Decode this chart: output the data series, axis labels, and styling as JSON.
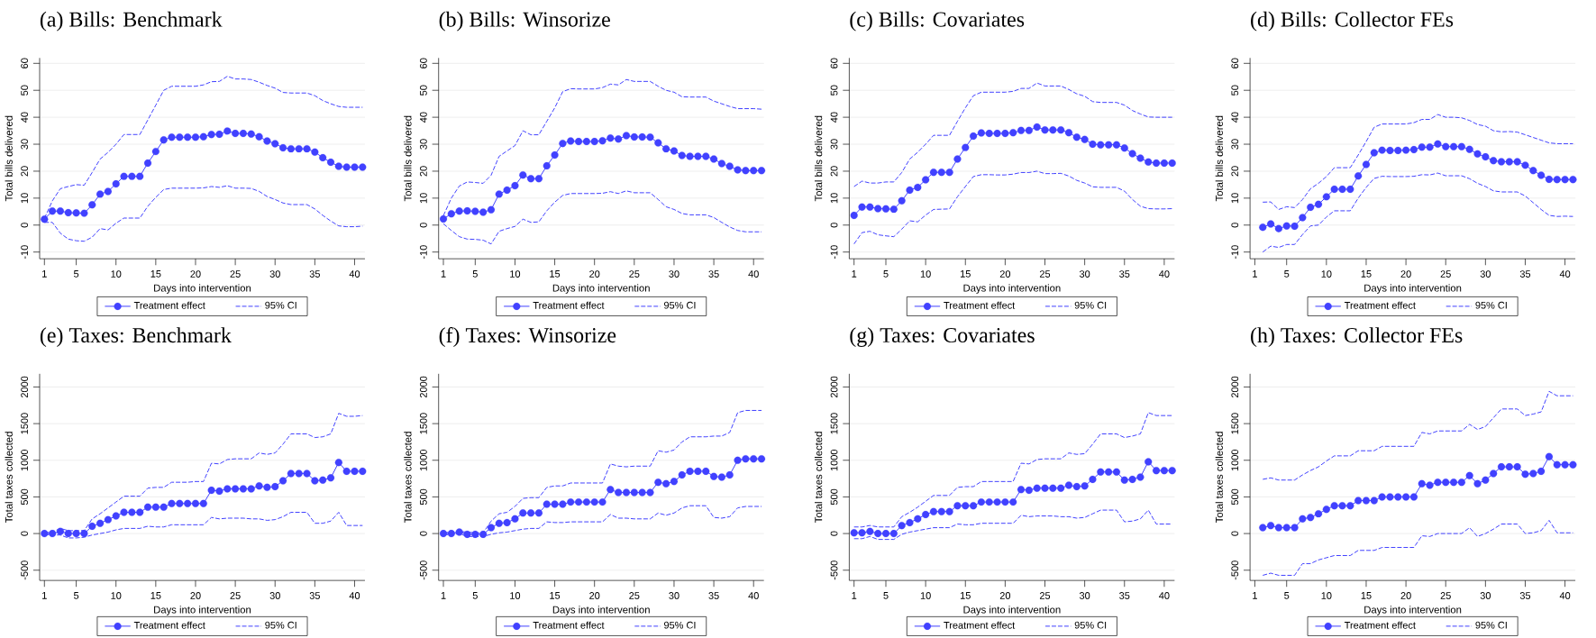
{
  "chart_data": [
    {
      "type": "line",
      "title": "(a) Bills: Benchmark",
      "xlabel": "Days into intervention",
      "ylabel": "Total bills delivered",
      "grid": "y",
      "legend": "bottom",
      "xlim": [
        0.4,
        41.3
      ],
      "ylim": [
        -12.5,
        62
      ],
      "xticks": [
        1,
        5,
        10,
        15,
        20,
        25,
        30,
        35,
        40
      ],
      "yticks": [
        -10,
        0,
        10,
        20,
        30,
        40,
        50,
        60
      ],
      "x": [
        1,
        2,
        3,
        4,
        5,
        6,
        7,
        8,
        9,
        10,
        11,
        12,
        13,
        14,
        15,
        16,
        17,
        18,
        19,
        20,
        21,
        22,
        23,
        24,
        25,
        26,
        27,
        28,
        29,
        30,
        31,
        32,
        33,
        34,
        35,
        36,
        37,
        38,
        39,
        40,
        41
      ],
      "series": [
        {
          "name": "Treatment effect",
          "color": "#4141ff",
          "marker": "circle",
          "line_style": "solid",
          "values": [
            2.2,
            5.2,
            5.2,
            4.6,
            4.5,
            4.4,
            7.5,
            11.5,
            12.5,
            15.3,
            18.1,
            18.1,
            18.1,
            23,
            27.3,
            31.6,
            32.6,
            32.6,
            32.6,
            32.6,
            32.8,
            33.6,
            33.7,
            34.9,
            34,
            34,
            33.8,
            32.8,
            31.2,
            30.2,
            28.7,
            28.3,
            28.3,
            28.3,
            27.1,
            25,
            23.3,
            21.8,
            21.5,
            21.5,
            21.5
          ]
        },
        {
          "name": "95% CI",
          "color": "#4141ff",
          "marker": "none",
          "line_style": "dashed",
          "values": [
            2.5,
            9,
            13.5,
            14.3,
            15,
            14.8,
            19.5,
            24.5,
            27,
            30,
            33.6,
            33.6,
            33.6,
            39,
            44.5,
            50,
            51.5,
            51.5,
            51.5,
            51.5,
            52,
            53.2,
            53.3,
            55.2,
            54.2,
            54.2,
            54,
            53,
            51.8,
            50.8,
            49.2,
            49,
            49,
            49,
            48,
            46.2,
            45,
            44,
            43.7,
            43.7,
            43.7
          ]
        },
        {
          "color": "#4141ff",
          "marker": "none",
          "line_style": "dashed",
          "values": [
            1,
            1,
            -3,
            -5.2,
            -5.8,
            -6,
            -4.5,
            -1.3,
            -1.8,
            0.7,
            2.6,
            2.6,
            2.6,
            7,
            10.3,
            13.2,
            13.7,
            13.7,
            13.7,
            13.7,
            13.8,
            14.3,
            14,
            14.6,
            13.7,
            13.7,
            13.6,
            12.5,
            10.6,
            9.5,
            8.2,
            7.6,
            7.6,
            7.6,
            6,
            3.6,
            1.5,
            -0.3,
            -0.6,
            -0.6,
            -0.4
          ]
        }
      ]
    },
    {
      "type": "line",
      "title": "(b) Bills: Winsorize",
      "xlabel": "Days into intervention",
      "ylabel": "Total bills delivered",
      "grid": "y",
      "legend": "bottom",
      "xlim": [
        0.4,
        41.3
      ],
      "ylim": [
        -12.5,
        62
      ],
      "xticks": [
        1,
        5,
        10,
        15,
        20,
        25,
        30,
        35,
        40
      ],
      "yticks": [
        -10,
        0,
        10,
        20,
        30,
        40,
        50,
        60
      ],
      "x": [
        1,
        2,
        3,
        4,
        5,
        6,
        7,
        8,
        9,
        10,
        11,
        12,
        13,
        14,
        15,
        16,
        17,
        18,
        19,
        20,
        21,
        22,
        23,
        24,
        25,
        26,
        27,
        28,
        29,
        30,
        31,
        32,
        33,
        34,
        35,
        36,
        37,
        38,
        39,
        40,
        41
      ],
      "series": [
        {
          "name": "Treatment effect",
          "color": "#4141ff",
          "marker": "circle",
          "line_style": "solid",
          "values": [
            2.3,
            4.2,
            5.2,
            5.3,
            5.1,
            4.8,
            5.7,
            11.5,
            13,
            14.6,
            18.6,
            17.2,
            17.2,
            22,
            26,
            30.3,
            31.2,
            31,
            31,
            31,
            31.3,
            32.3,
            31.9,
            33.2,
            32.7,
            32.7,
            32.6,
            30.5,
            28.3,
            27.5,
            25.8,
            25.5,
            25.5,
            25.5,
            24.5,
            22.8,
            21.8,
            20.5,
            20.2,
            20.2,
            20.2
          ]
        },
        {
          "name": "95% CI",
          "color": "#4141ff",
          "marker": "none",
          "line_style": "dashed",
          "values": [
            3.5,
            10,
            14.5,
            16,
            15.8,
            15.5,
            18.5,
            25.5,
            27.5,
            29.5,
            35,
            33.5,
            33.5,
            38.5,
            43.5,
            49.5,
            50.6,
            50.5,
            50.5,
            50.5,
            51,
            52.3,
            52,
            54,
            53.3,
            53.3,
            53.3,
            51.5,
            50,
            49.3,
            47.6,
            47.5,
            47.5,
            47.5,
            46,
            45,
            44,
            43.2,
            43.2,
            43.2,
            43
          ]
        },
        {
          "color": "#4141ff",
          "marker": "none",
          "line_style": "dashed",
          "values": [
            0.5,
            -2,
            -4.3,
            -5.2,
            -5.3,
            -5.6,
            -7,
            -2.3,
            -1.3,
            -0.5,
            2.2,
            1,
            1.2,
            5.3,
            8.5,
            11,
            11.7,
            11.7,
            11.7,
            11.7,
            11.8,
            12.4,
            11.7,
            12.7,
            12,
            12,
            12,
            9.5,
            6.8,
            5.8,
            4.3,
            3.8,
            3.8,
            3.8,
            2.8,
            1,
            -0.7,
            -2,
            -2.5,
            -2.5,
            -2.5
          ]
        }
      ]
    },
    {
      "type": "line",
      "title": "(c) Bills: Covariates",
      "xlabel": "Days into intervention",
      "ylabel": "Total bills delivered",
      "grid": "y",
      "legend": "bottom",
      "xlim": [
        0.4,
        41.3
      ],
      "ylim": [
        -12.5,
        62
      ],
      "xticks": [
        1,
        5,
        10,
        15,
        20,
        25,
        30,
        35,
        40
      ],
      "yticks": [
        -10,
        0,
        10,
        20,
        30,
        40,
        50,
        60
      ],
      "x": [
        1,
        2,
        3,
        4,
        5,
        6,
        7,
        8,
        9,
        10,
        11,
        12,
        13,
        14,
        15,
        16,
        17,
        18,
        19,
        20,
        21,
        22,
        23,
        24,
        25,
        26,
        27,
        28,
        29,
        30,
        31,
        32,
        33,
        34,
        35,
        36,
        37,
        38,
        39,
        40,
        41
      ],
      "series": [
        {
          "name": "Treatment effect",
          "color": "#4141ff",
          "marker": "circle",
          "line_style": "solid",
          "values": [
            3.6,
            6.7,
            6.7,
            6.1,
            6,
            5.9,
            9,
            13,
            14,
            16.8,
            19.6,
            19.6,
            19.6,
            24.5,
            28.8,
            33,
            34.2,
            34,
            34,
            34,
            34.3,
            35.1,
            35.1,
            36.4,
            35.3,
            35.3,
            35.3,
            34.3,
            32.6,
            31.8,
            30,
            29.8,
            29.8,
            29.8,
            28.6,
            26.5,
            24.8,
            23.4,
            23,
            23,
            23
          ]
        },
        {
          "name": "95% CI",
          "color": "#4141ff",
          "marker": "none",
          "line_style": "dashed",
          "values": [
            14.3,
            16.3,
            15.6,
            15.6,
            16,
            16,
            19.5,
            24.5,
            27,
            30,
            33.3,
            33.3,
            33.3,
            38.5,
            43.5,
            48,
            49.3,
            49.3,
            49.3,
            49.3,
            49.6,
            50.7,
            50.7,
            52.7,
            51.6,
            51.6,
            51.6,
            50.3,
            48.7,
            47.8,
            45.8,
            45.5,
            45.5,
            45.5,
            44.5,
            42.5,
            41.2,
            40.1,
            40,
            40,
            40
          ]
        },
        {
          "color": "#4141ff",
          "marker": "none",
          "line_style": "dashed",
          "values": [
            -7,
            -2.8,
            -2.3,
            -3.6,
            -4,
            -4.3,
            -1.5,
            1.6,
            1.2,
            3.7,
            5.8,
            5.9,
            6,
            10.5,
            14.3,
            18,
            18.7,
            18.7,
            18.6,
            18.6,
            18.9,
            19.5,
            19.5,
            20,
            19.1,
            19.1,
            19.2,
            18.2,
            16.6,
            15.6,
            14.2,
            14,
            14,
            14,
            12.6,
            9.5,
            7,
            6.1,
            6,
            6,
            6.1
          ]
        }
      ]
    },
    {
      "type": "line",
      "title": "(d) Bills: Collector FEs",
      "xlabel": "Days into intervention",
      "ylabel": "Total bills delivered",
      "grid": "y",
      "legend": "bottom",
      "xlim": [
        0.4,
        41.3
      ],
      "ylim": [
        -12.5,
        62
      ],
      "xticks": [
        1,
        5,
        10,
        15,
        20,
        25,
        30,
        35,
        40
      ],
      "yticks": [
        -10,
        0,
        10,
        20,
        30,
        40,
        50,
        60
      ],
      "x": [
        2,
        3,
        4,
        5,
        6,
        7,
        8,
        9,
        10,
        11,
        12,
        13,
        14,
        15,
        16,
        17,
        18,
        19,
        20,
        21,
        22,
        23,
        24,
        25,
        26,
        27,
        28,
        29,
        30,
        31,
        32,
        33,
        34,
        35,
        36,
        37,
        38,
        39,
        40,
        41
      ],
      "series": [
        {
          "name": "Treatment effect",
          "color": "#4141ff",
          "marker": "circle",
          "line_style": "solid",
          "values": [
            -0.8,
            0.4,
            -1.3,
            -0.3,
            -0.4,
            2.8,
            6.6,
            7.7,
            10.5,
            13.3,
            13.3,
            13.3,
            18.2,
            22.5,
            26.8,
            27.8,
            27.7,
            27.7,
            27.8,
            28,
            28.9,
            28.9,
            30.1,
            29.1,
            29.1,
            29.1,
            28.1,
            26.4,
            25.3,
            23.9,
            23.5,
            23.5,
            23.5,
            22.2,
            20.2,
            18.5,
            17,
            16.9,
            16.9,
            16.9
          ]
        },
        {
          "name": "95% CI",
          "color": "#4141ff",
          "marker": "none",
          "line_style": "dashed",
          "values": [
            8.5,
            8.6,
            5.8,
            6.8,
            6.5,
            9.5,
            13.5,
            15.5,
            18,
            21.3,
            21.3,
            21.3,
            26,
            31,
            36.3,
            37.5,
            37.5,
            37.5,
            37.5,
            38,
            39.2,
            39.2,
            41,
            40,
            40,
            39.8,
            38.8,
            37.3,
            36.7,
            35,
            34.6,
            34.7,
            34.5,
            33.5,
            32.5,
            31.5,
            30.5,
            30.2,
            30.2,
            30.2
          ]
        },
        {
          "color": "#4141ff",
          "marker": "none",
          "line_style": "dashed",
          "values": [
            -10,
            -7.8,
            -8.3,
            -7.2,
            -7.2,
            -3.5,
            -0.3,
            0,
            3,
            5.3,
            5.3,
            5.3,
            10,
            14,
            17.3,
            18.1,
            18,
            18,
            18,
            18.1,
            18.7,
            18.6,
            19.3,
            18.3,
            18.3,
            18.3,
            17.2,
            15.5,
            14.3,
            12.7,
            12.3,
            12.3,
            12.3,
            10.8,
            8.3,
            5.8,
            3.6,
            3.2,
            3.3,
            3.2
          ]
        }
      ]
    },
    {
      "type": "line",
      "title": "(e) Taxes: Benchmark",
      "xlabel": "Days into intervention",
      "ylabel": "Total taxes collected",
      "grid": "y",
      "legend": "bottom",
      "xlim": [
        0.4,
        41.3
      ],
      "ylim": [
        -640,
        2180
      ],
      "xticks": [
        1,
        5,
        10,
        15,
        20,
        25,
        30,
        35,
        40
      ],
      "yticks": [
        -500,
        0,
        500,
        1000,
        1500,
        2000
      ],
      "x": [
        1,
        2,
        3,
        4,
        5,
        6,
        7,
        8,
        9,
        10,
        11,
        12,
        13,
        14,
        15,
        16,
        17,
        18,
        19,
        20,
        21,
        22,
        23,
        24,
        25,
        26,
        27,
        28,
        29,
        30,
        31,
        32,
        33,
        34,
        35,
        36,
        37,
        38,
        39,
        40,
        41
      ],
      "series": [
        {
          "name": "Treatment effect",
          "color": "#4141ff",
          "marker": "circle",
          "line_style": "solid",
          "values": [
            0,
            0,
            30,
            0,
            0,
            0,
            100,
            140,
            190,
            240,
            290,
            290,
            290,
            360,
            360,
            360,
            410,
            410,
            410,
            410,
            410,
            590,
            580,
            610,
            610,
            610,
            610,
            650,
            630,
            640,
            720,
            820,
            820,
            820,
            720,
            730,
            760,
            970,
            850,
            850,
            850
          ]
        },
        {
          "name": "95% CI",
          "color": "#4141ff",
          "marker": "none",
          "line_style": "dashed",
          "values": [
            10,
            20,
            70,
            40,
            40,
            40,
            200,
            270,
            350,
            430,
            510,
            510,
            510,
            620,
            630,
            630,
            700,
            700,
            700,
            710,
            710,
            960,
            950,
            1010,
            1020,
            1020,
            1020,
            1100,
            1080,
            1100,
            1220,
            1360,
            1360,
            1360,
            1310,
            1320,
            1360,
            1640,
            1600,
            1600,
            1610
          ]
        },
        {
          "color": "#4141ff",
          "marker": "none",
          "line_style": "dashed",
          "values": [
            -10,
            -20,
            -20,
            -60,
            -60,
            -50,
            -20,
            0,
            20,
            50,
            70,
            70,
            70,
            100,
            90,
            90,
            120,
            120,
            120,
            120,
            120,
            220,
            200,
            210,
            210,
            210,
            200,
            200,
            180,
            190,
            230,
            290,
            290,
            290,
            140,
            140,
            170,
            290,
            110,
            110,
            110
          ]
        }
      ]
    },
    {
      "type": "line",
      "title": "(f) Taxes: Winsorize",
      "xlabel": "Days into intervention",
      "ylabel": "Total taxes collected",
      "grid": "y",
      "legend": "bottom",
      "xlim": [
        0.4,
        41.3
      ],
      "ylim": [
        -640,
        2180
      ],
      "xticks": [
        1,
        5,
        10,
        15,
        20,
        25,
        30,
        35,
        40
      ],
      "yticks": [
        -500,
        0,
        500,
        1000,
        1500,
        2000
      ],
      "x": [
        1,
        2,
        3,
        4,
        5,
        6,
        7,
        8,
        9,
        10,
        11,
        12,
        13,
        14,
        15,
        16,
        17,
        18,
        19,
        20,
        21,
        22,
        23,
        24,
        25,
        26,
        27,
        28,
        29,
        30,
        31,
        32,
        33,
        34,
        35,
        36,
        37,
        38,
        39,
        40,
        41
      ],
      "series": [
        {
          "name": "Treatment effect",
          "color": "#4141ff",
          "marker": "circle",
          "line_style": "solid",
          "values": [
            0,
            0,
            20,
            -10,
            -10,
            -10,
            80,
            140,
            150,
            200,
            280,
            280,
            280,
            400,
            400,
            400,
            430,
            430,
            430,
            430,
            430,
            600,
            560,
            560,
            560,
            560,
            560,
            700,
            680,
            710,
            800,
            850,
            850,
            850,
            780,
            770,
            800,
            1000,
            1020,
            1020,
            1020
          ]
        },
        {
          "name": "95% CI",
          "color": "#4141ff",
          "marker": "none",
          "line_style": "dashed",
          "values": [
            10,
            20,
            30,
            20,
            10,
            10,
            170,
            270,
            290,
            370,
            480,
            490,
            490,
            630,
            650,
            650,
            690,
            690,
            690,
            690,
            690,
            950,
            920,
            910,
            920,
            920,
            920,
            1130,
            1110,
            1140,
            1250,
            1320,
            1320,
            1320,
            1330,
            1330,
            1380,
            1650,
            1680,
            1680,
            1680
          ]
        },
        {
          "color": "#4141ff",
          "marker": "none",
          "line_style": "dashed",
          "values": [
            -10,
            -20,
            0,
            -40,
            -40,
            -40,
            -10,
            10,
            20,
            40,
            60,
            70,
            70,
            160,
            150,
            150,
            160,
            160,
            160,
            160,
            160,
            260,
            210,
            210,
            200,
            200,
            200,
            280,
            250,
            280,
            350,
            380,
            380,
            380,
            220,
            210,
            230,
            350,
            370,
            370,
            370
          ]
        }
      ]
    },
    {
      "type": "line",
      "title": "(g) Taxes: Covariates",
      "xlabel": "Days into intervention",
      "ylabel": "Total taxes collected",
      "grid": "y",
      "legend": "bottom",
      "xlim": [
        0.4,
        41.3
      ],
      "ylim": [
        -640,
        2180
      ],
      "xticks": [
        1,
        5,
        10,
        15,
        20,
        25,
        30,
        35,
        40
      ],
      "yticks": [
        -500,
        0,
        500,
        1000,
        1500,
        2000
      ],
      "x": [
        1,
        2,
        3,
        4,
        5,
        6,
        7,
        8,
        9,
        10,
        11,
        12,
        13,
        14,
        15,
        16,
        17,
        18,
        19,
        20,
        21,
        22,
        23,
        24,
        25,
        26,
        27,
        28,
        29,
        30,
        31,
        32,
        33,
        34,
        35,
        36,
        37,
        38,
        39,
        40,
        41
      ],
      "series": [
        {
          "name": "Treatment effect",
          "color": "#4141ff",
          "marker": "circle",
          "line_style": "solid",
          "values": [
            10,
            10,
            30,
            0,
            0,
            0,
            110,
            150,
            200,
            260,
            300,
            300,
            300,
            380,
            380,
            380,
            430,
            430,
            430,
            430,
            430,
            600,
            590,
            620,
            620,
            620,
            620,
            660,
            640,
            650,
            740,
            840,
            840,
            840,
            730,
            740,
            770,
            980,
            860,
            860,
            860
          ]
        },
        {
          "name": "95% CI",
          "color": "#4141ff",
          "marker": "none",
          "line_style": "dashed",
          "values": [
            90,
            90,
            110,
            90,
            90,
            90,
            230,
            290,
            360,
            440,
            520,
            520,
            520,
            630,
            640,
            640,
            710,
            710,
            710,
            710,
            710,
            960,
            950,
            1010,
            1020,
            1020,
            1020,
            1100,
            1080,
            1090,
            1220,
            1360,
            1360,
            1360,
            1310,
            1330,
            1360,
            1650,
            1610,
            1610,
            1610
          ]
        },
        {
          "color": "#4141ff",
          "marker": "none",
          "line_style": "dashed",
          "values": [
            -70,
            -70,
            -40,
            -80,
            -80,
            -80,
            -10,
            20,
            40,
            60,
            80,
            80,
            80,
            130,
            120,
            120,
            140,
            140,
            140,
            140,
            140,
            250,
            230,
            240,
            240,
            240,
            230,
            230,
            210,
            220,
            270,
            320,
            320,
            320,
            160,
            170,
            200,
            320,
            130,
            130,
            130
          ]
        }
      ]
    },
    {
      "type": "line",
      "title": "(h) Taxes: Collector FEs",
      "xlabel": "Days into intervention",
      "ylabel": "Total taxes collected",
      "grid": "y",
      "legend": "bottom",
      "xlim": [
        0.4,
        41.3
      ],
      "ylim": [
        -640,
        2180
      ],
      "xticks": [
        1,
        5,
        10,
        15,
        20,
        25,
        30,
        35,
        40
      ],
      "yticks": [
        -500,
        0,
        500,
        1000,
        1500,
        2000
      ],
      "x": [
        2,
        3,
        4,
        5,
        6,
        7,
        8,
        9,
        10,
        11,
        12,
        13,
        14,
        15,
        16,
        17,
        18,
        19,
        20,
        21,
        22,
        23,
        24,
        25,
        26,
        27,
        28,
        29,
        30,
        31,
        32,
        33,
        34,
        35,
        36,
        37,
        38,
        39,
        40,
        41
      ],
      "series": [
        {
          "name": "Treatment effect",
          "color": "#4141ff",
          "marker": "circle",
          "line_style": "solid",
          "values": [
            80,
            110,
            80,
            80,
            80,
            200,
            220,
            270,
            330,
            380,
            380,
            380,
            450,
            450,
            450,
            500,
            500,
            500,
            500,
            500,
            680,
            660,
            700,
            700,
            700,
            700,
            790,
            680,
            730,
            820,
            910,
            910,
            910,
            810,
            820,
            850,
            1050,
            940,
            940,
            940
          ]
        },
        {
          "name": "95% CI",
          "color": "#4141ff",
          "marker": "none",
          "line_style": "dashed",
          "values": [
            740,
            760,
            730,
            730,
            730,
            800,
            860,
            910,
            990,
            1060,
            1060,
            1060,
            1130,
            1130,
            1130,
            1190,
            1190,
            1190,
            1190,
            1190,
            1380,
            1360,
            1400,
            1400,
            1400,
            1400,
            1490,
            1420,
            1460,
            1580,
            1700,
            1700,
            1700,
            1610,
            1630,
            1660,
            1940,
            1880,
            1880,
            1880
          ]
        },
        {
          "color": "#4141ff",
          "marker": "none",
          "line_style": "dashed",
          "values": [
            -570,
            -540,
            -570,
            -570,
            -570,
            -410,
            -410,
            -360,
            -330,
            -300,
            -300,
            -300,
            -230,
            -230,
            -230,
            -190,
            -190,
            -190,
            -190,
            -190,
            -30,
            -40,
            0,
            0,
            0,
            0,
            80,
            -40,
            0,
            60,
            130,
            130,
            130,
            0,
            10,
            40,
            180,
            10,
            10,
            10
          ]
        }
      ]
    }
  ]
}
